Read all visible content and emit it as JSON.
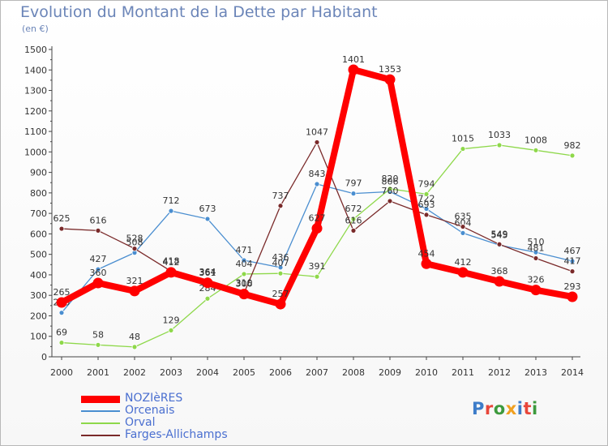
{
  "title": "Evolution du Montant de la Dette par Habitant",
  "unit_label": "(en €)",
  "logo": {
    "text": "Proxiti",
    "colors": [
      "#3d7cc9",
      "#e8463a",
      "#3d9a3d",
      "#f0a020",
      "#3d7cc9",
      "#e8463a",
      "#3d9a3d"
    ]
  },
  "chart_data": {
    "type": "line",
    "title": "Evolution du Montant de la Dette par Habitant",
    "ylabel": "(en €)",
    "xlabel": "",
    "x": [
      2000,
      2001,
      2002,
      2003,
      2004,
      2005,
      2006,
      2007,
      2008,
      2009,
      2010,
      2011,
      2012,
      2013,
      2014
    ],
    "ylim": [
      0,
      1500
    ],
    "yticks": [
      0,
      100,
      200,
      300,
      400,
      500,
      600,
      700,
      800,
      900,
      1000,
      1100,
      1200,
      1300,
      1400,
      1500
    ],
    "grid": false,
    "legend": "bottom-left",
    "series": [
      {
        "name": "Orcenais",
        "color": "#4a8ed0",
        "values": [
          215,
          427,
          508,
          712,
          673,
          471,
          436,
          843,
          797,
          806,
          722,
          604,
          545,
          510,
          467
        ]
      },
      {
        "name": "Orval",
        "color": "#8ed84a",
        "values": [
          69,
          58,
          48,
          129,
          284,
          404,
          407,
          391,
          672,
          820,
          794,
          1015,
          1033,
          1008,
          982
        ]
      },
      {
        "name": "Farges-Allichamps",
        "color": "#7a2a2a",
        "values": [
          625,
          616,
          528,
          418,
          364,
          310,
          737,
          1047,
          616,
          760,
          693,
          635,
          549,
          481,
          417
        ]
      },
      {
        "name": "NOZIèRES",
        "color": "#ff0000",
        "values": [
          265,
          360,
          321,
          412,
          361,
          306,
          257,
          627,
          1401,
          1353,
          454,
          412,
          368,
          326,
          293
        ]
      }
    ]
  }
}
